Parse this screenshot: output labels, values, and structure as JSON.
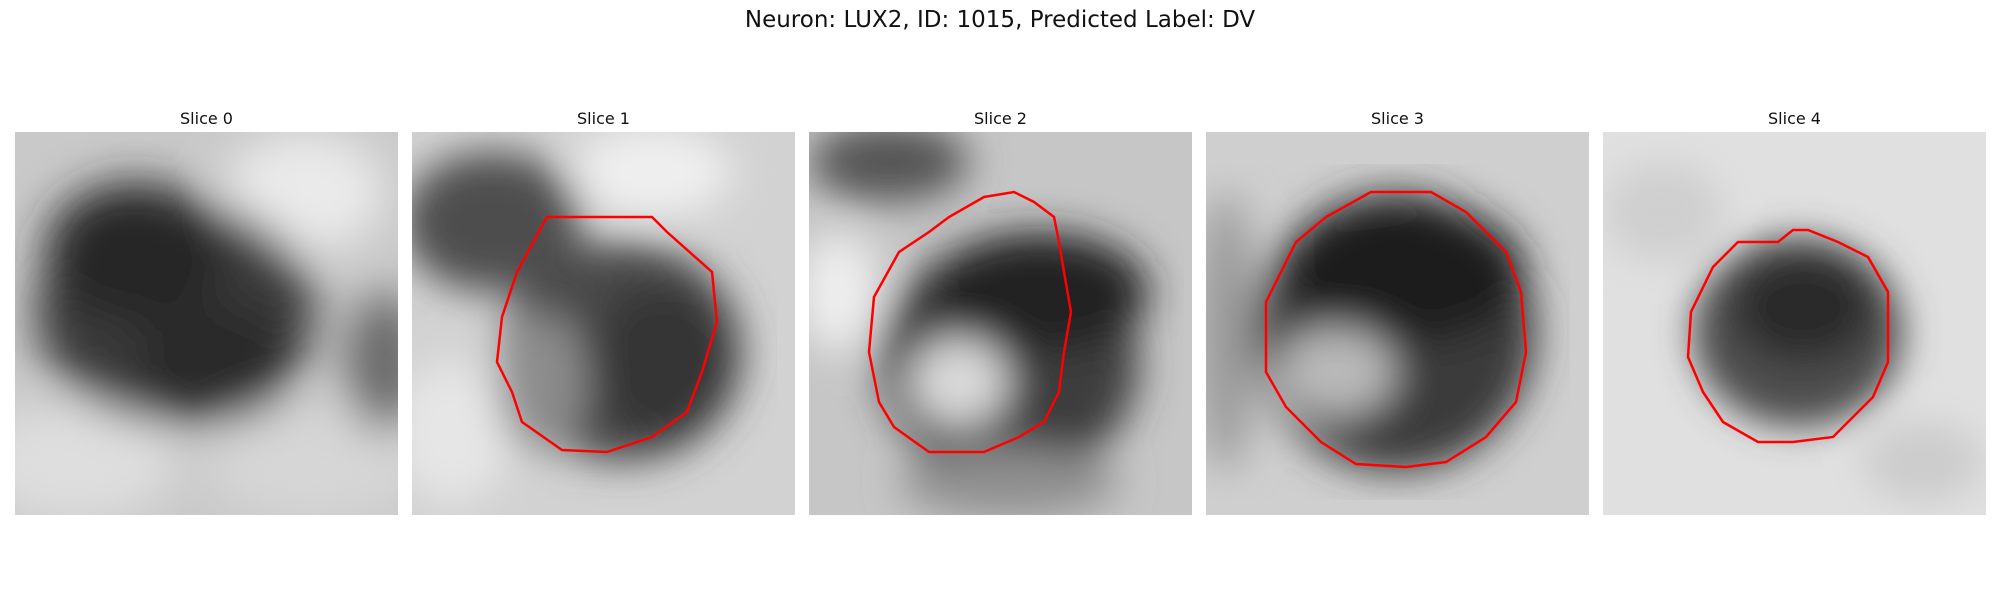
{
  "figure": {
    "title": "Neuron: LUX2, ID: 1015, Predicted Label: DV"
  },
  "panels": [
    {
      "title": "Slice 0",
      "has_contour": false
    },
    {
      "title": "Slice 1",
      "has_contour": true
    },
    {
      "title": "Slice 2",
      "has_contour": true
    },
    {
      "title": "Slice 3",
      "has_contour": true
    },
    {
      "title": "Slice 4",
      "has_contour": true
    }
  ],
  "colors": {
    "contour": "#ff0000",
    "background": "#ffffff"
  }
}
